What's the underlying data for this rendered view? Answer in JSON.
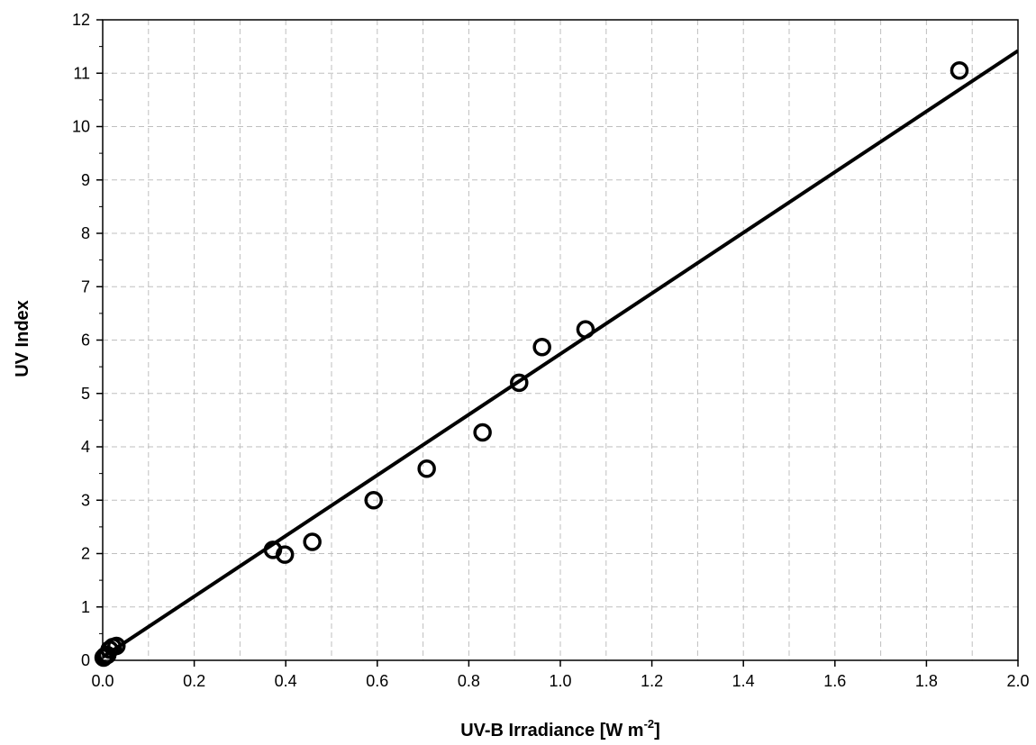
{
  "chart_data": {
    "type": "scatter",
    "xlabel": "UV-B Irradiance [W m",
    "xlabel_superscript": "-2",
    "xlabel_suffix": "]",
    "ylabel": "UV Index",
    "xlim": [
      0.0,
      2.0
    ],
    "ylim": [
      0,
      12
    ],
    "x_ticks": [
      "0.0",
      "0.2",
      "0.4",
      "0.6",
      "0.8",
      "1.0",
      "1.2",
      "1.4",
      "1.6",
      "1.8",
      "2.0"
    ],
    "y_ticks": [
      "0",
      "1",
      "2",
      "3",
      "4",
      "5",
      "6",
      "7",
      "8",
      "9",
      "10",
      "11",
      "12"
    ],
    "grid": true,
    "grid_style": "dashed",
    "marker": "open-circle",
    "series": [
      {
        "points": [
          {
            "x": 0.002,
            "y": 0.05
          },
          {
            "x": 0.005,
            "y": 0.08
          },
          {
            "x": 0.01,
            "y": 0.1
          },
          {
            "x": 0.015,
            "y": 0.2
          },
          {
            "x": 0.022,
            "y": 0.25
          },
          {
            "x": 0.03,
            "y": 0.27
          },
          {
            "x": 0.372,
            "y": 2.07
          },
          {
            "x": 0.398,
            "y": 1.98
          },
          {
            "x": 0.458,
            "y": 2.22
          },
          {
            "x": 0.592,
            "y": 3.0
          },
          {
            "x": 0.708,
            "y": 3.59
          },
          {
            "x": 0.83,
            "y": 4.27
          },
          {
            "x": 0.91,
            "y": 5.2
          },
          {
            "x": 0.96,
            "y": 5.87
          },
          {
            "x": 1.055,
            "y": 6.2
          },
          {
            "x": 1.872,
            "y": 11.05
          }
        ]
      }
    ],
    "trendline": {
      "slope": 5.68,
      "intercept": 0.06,
      "x_range": [
        0.0,
        2.0
      ]
    },
    "colors": {
      "marker": "#000000",
      "line": "#000000",
      "grid": "#bfbfbf"
    }
  }
}
